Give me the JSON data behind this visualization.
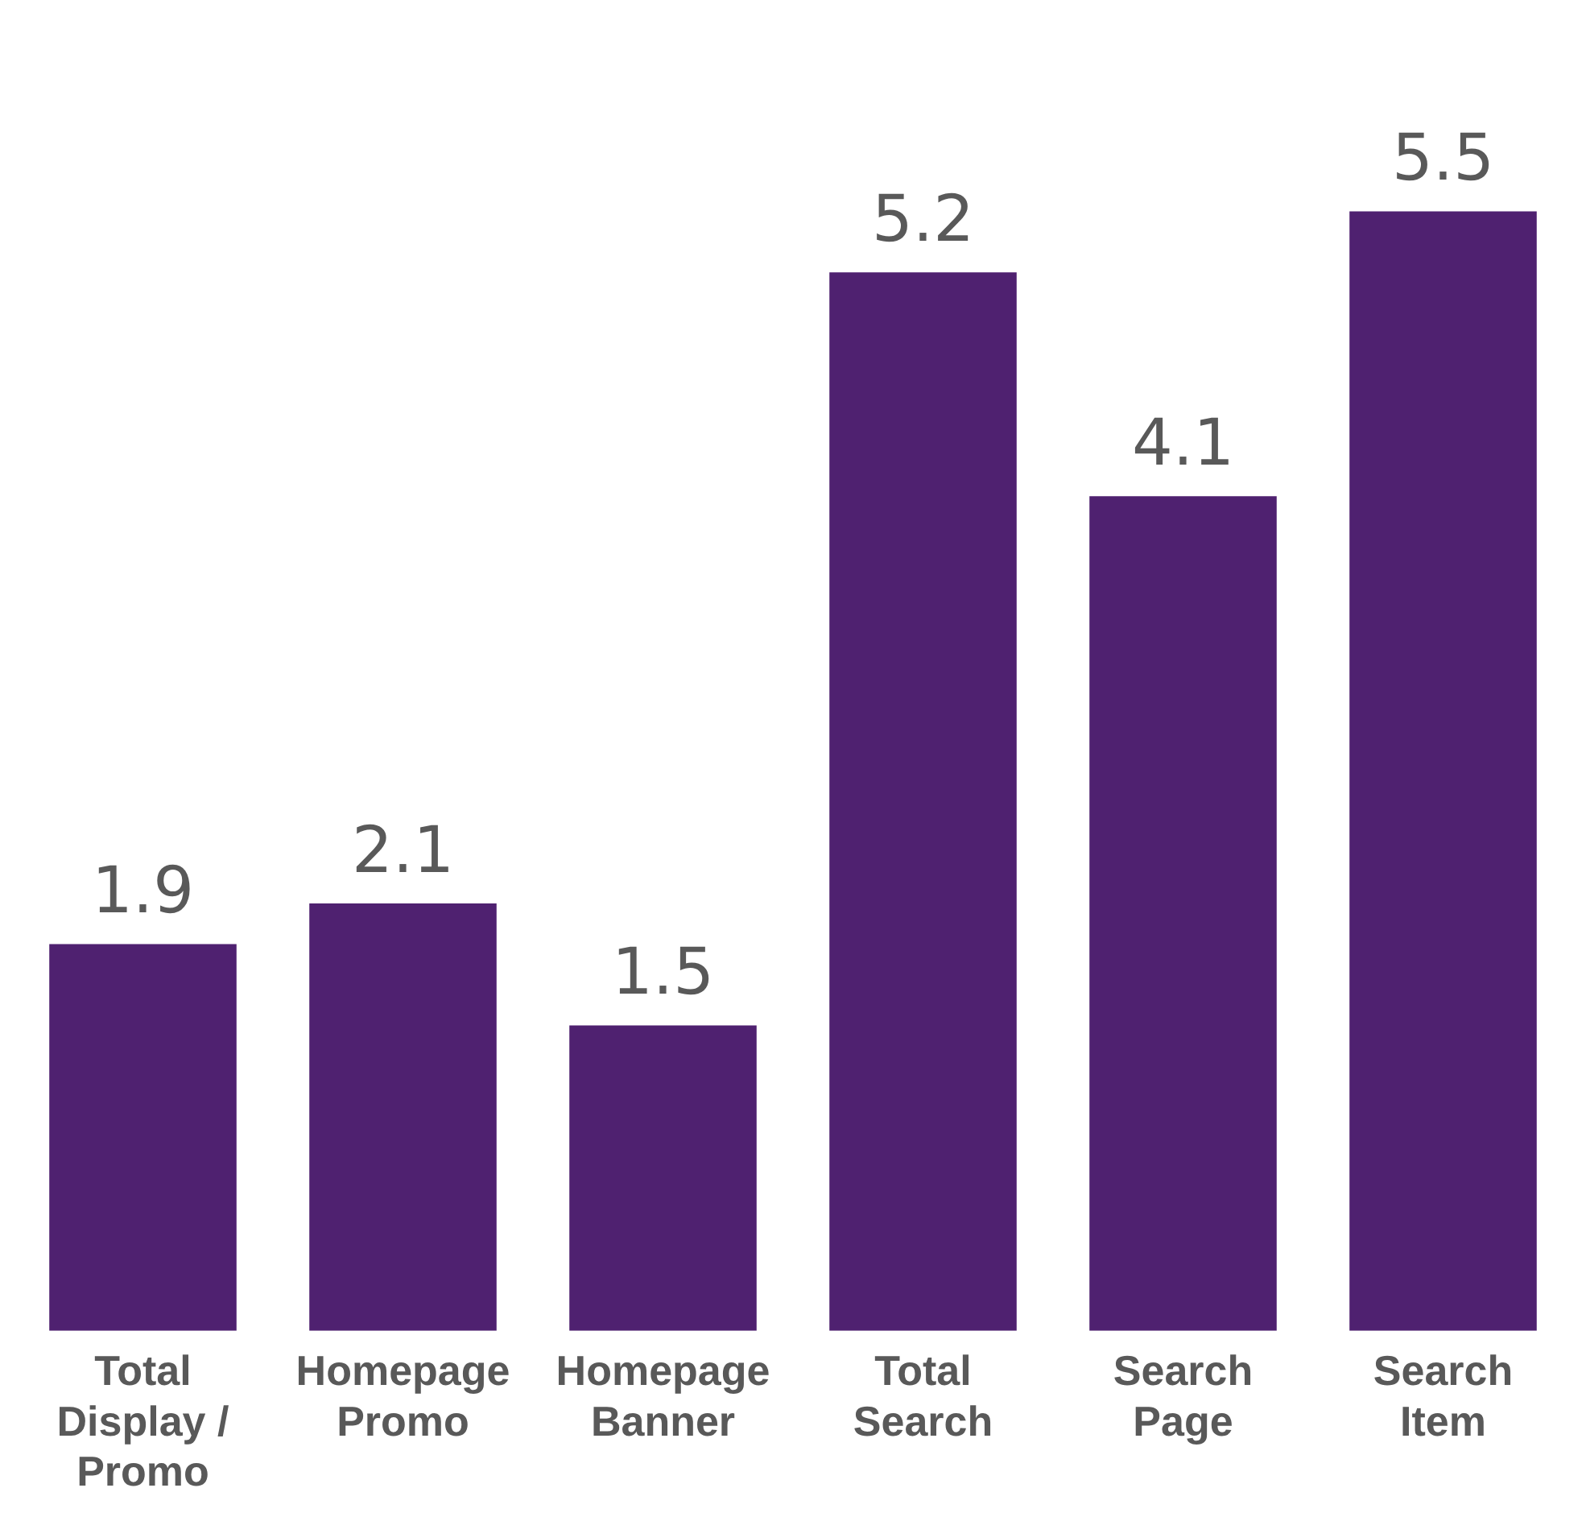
{
  "chart_data": {
    "type": "bar",
    "categories": [
      "Total Display / Promo",
      "Homepage Promo",
      "Homepage Banner",
      "Total Search",
      "Search Page",
      "Search Item"
    ],
    "values": [
      1.9,
      2.1,
      1.5,
      5.2,
      4.1,
      5.5
    ],
    "color": "#4f2170",
    "data_labels": true,
    "grid": false,
    "legend": false
  }
}
